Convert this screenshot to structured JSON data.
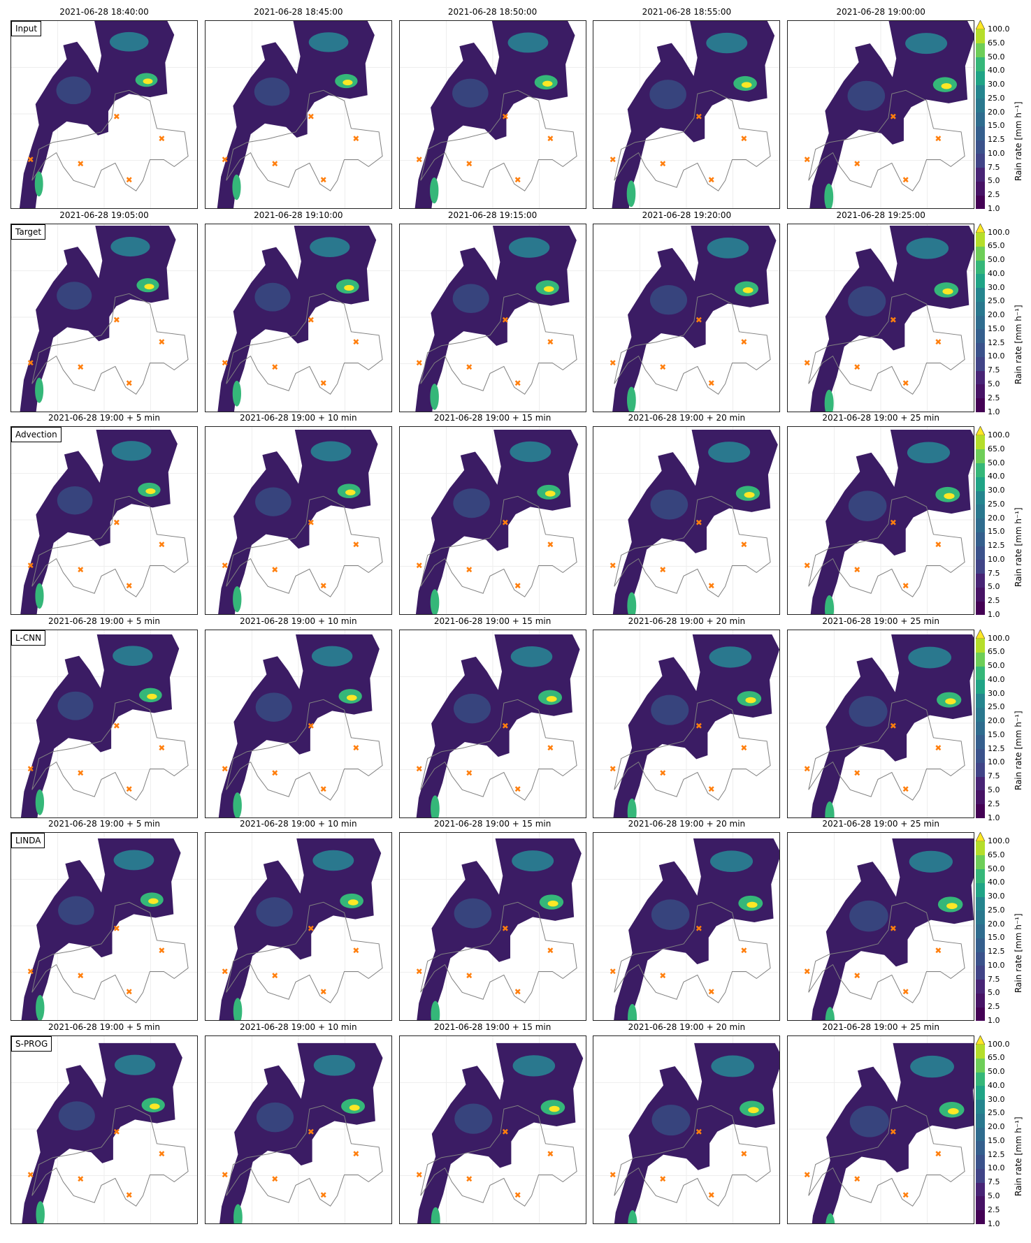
{
  "rows": [
    {
      "label": "Input",
      "titles": [
        "2021-06-28 18:40:00",
        "2021-06-28 18:45:00",
        "2021-06-28 18:50:00",
        "2021-06-28 18:55:00",
        "2021-06-28 19:00:00"
      ]
    },
    {
      "label": "Target",
      "titles": [
        "2021-06-28 19:05:00",
        "2021-06-28 19:10:00",
        "2021-06-28 19:15:00",
        "2021-06-28 19:20:00",
        "2021-06-28 19:25:00"
      ]
    },
    {
      "label": "Advection",
      "titles": [
        "2021-06-28 19:00 +  5 min",
        "2021-06-28 19:00 +  10 min",
        "2021-06-28 19:00 +  15 min",
        "2021-06-28 19:00 +  20 min",
        "2021-06-28 19:00 +  25 min"
      ]
    },
    {
      "label": "L-CNN",
      "titles": [
        "2021-06-28 19:00 +  5 min",
        "2021-06-28 19:00 +  10 min",
        "2021-06-28 19:00 +  15 min",
        "2021-06-28 19:00 +  20 min",
        "2021-06-28 19:00 +  25 min"
      ]
    },
    {
      "label": "LINDA",
      "titles": [
        "2021-06-28 19:00 +  5 min",
        "2021-06-28 19:00 +  10 min",
        "2021-06-28 19:00 +  15 min",
        "2021-06-28 19:00 +  20 min",
        "2021-06-28 19:00 +  25 min"
      ]
    },
    {
      "label": "S-PROG",
      "titles": [
        "2021-06-28 19:00 +  5 min",
        "2021-06-28 19:00 +  10 min",
        "2021-06-28 19:00 +  15 min",
        "2021-06-28 19:00 +  20 min",
        "2021-06-28 19:00 +  25 min"
      ]
    }
  ],
  "colorbar": {
    "label": "Rain rate [mm h⁻¹]",
    "ticks": [
      "1.0",
      "2.5",
      "5.0",
      "7.5",
      "10.0",
      "12.5",
      "15.0",
      "20.0",
      "25.0",
      "30.0",
      "40.0",
      "50.0",
      "65.0",
      "100.0"
    ],
    "colors": [
      "#440154",
      "#471365",
      "#482475",
      "#463480",
      "#414487",
      "#3b528b",
      "#355f8d",
      "#2f6c8e",
      "#2a788e",
      "#25858e",
      "#1f928c",
      "#20a486",
      "#35b779",
      "#6ece58",
      "#b5de2b",
      "#fde725"
    ],
    "extend": "max"
  },
  "colors": {
    "rain": "#3b1c64",
    "marker": "#ff7f0e",
    "border": "#808080"
  }
}
